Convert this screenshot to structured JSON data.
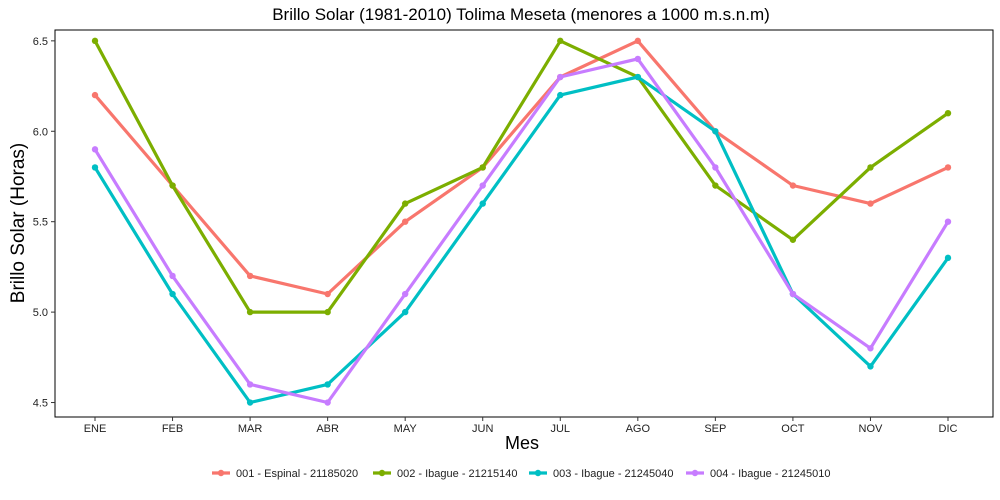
{
  "chart_data": {
    "type": "line",
    "title": "Brillo Solar (1981-2010) Tolima Meseta (menores a 1000 m.s.n.m)",
    "xlabel": "Mes",
    "ylabel": "Brillo Solar (Horas)",
    "categories": [
      "ENE",
      "FEB",
      "MAR",
      "ABR",
      "MAY",
      "JUN",
      "JUL",
      "AGO",
      "SEP",
      "OCT",
      "NOV",
      "DIC"
    ],
    "ylim": [
      4.42,
      6.56
    ],
    "yticks": [
      4.5,
      5.0,
      5.5,
      6.0,
      6.5
    ],
    "ytick_labels": [
      "4.5",
      "5.0",
      "5.5",
      "6.0",
      "6.5"
    ],
    "grid": false,
    "legend_position": "bottom",
    "series": [
      {
        "name": "001 - Espinal - 21185020",
        "color": "#F8766D",
        "values": [
          6.2,
          5.7,
          5.2,
          5.1,
          5.5,
          5.8,
          6.3,
          6.5,
          6.0,
          5.7,
          5.6,
          5.8
        ]
      },
      {
        "name": "002 - Ibague - 21215140",
        "color": "#7CAE00",
        "values": [
          6.5,
          5.7,
          5.0,
          5.0,
          5.6,
          5.8,
          6.5,
          6.3,
          5.7,
          5.4,
          5.8,
          6.1
        ]
      },
      {
        "name": "003 - Ibague - 21245040",
        "color": "#00BFC4",
        "values": [
          5.8,
          5.1,
          4.5,
          4.6,
          5.0,
          5.6,
          6.2,
          6.3,
          6.0,
          5.1,
          4.7,
          5.3
        ]
      },
      {
        "name": "004 - Ibague - 21245010",
        "color": "#C77CFF",
        "values": [
          5.9,
          5.2,
          4.6,
          4.5,
          5.1,
          5.7,
          6.3,
          6.4,
          5.8,
          5.1,
          4.8,
          5.5
        ]
      }
    ]
  }
}
